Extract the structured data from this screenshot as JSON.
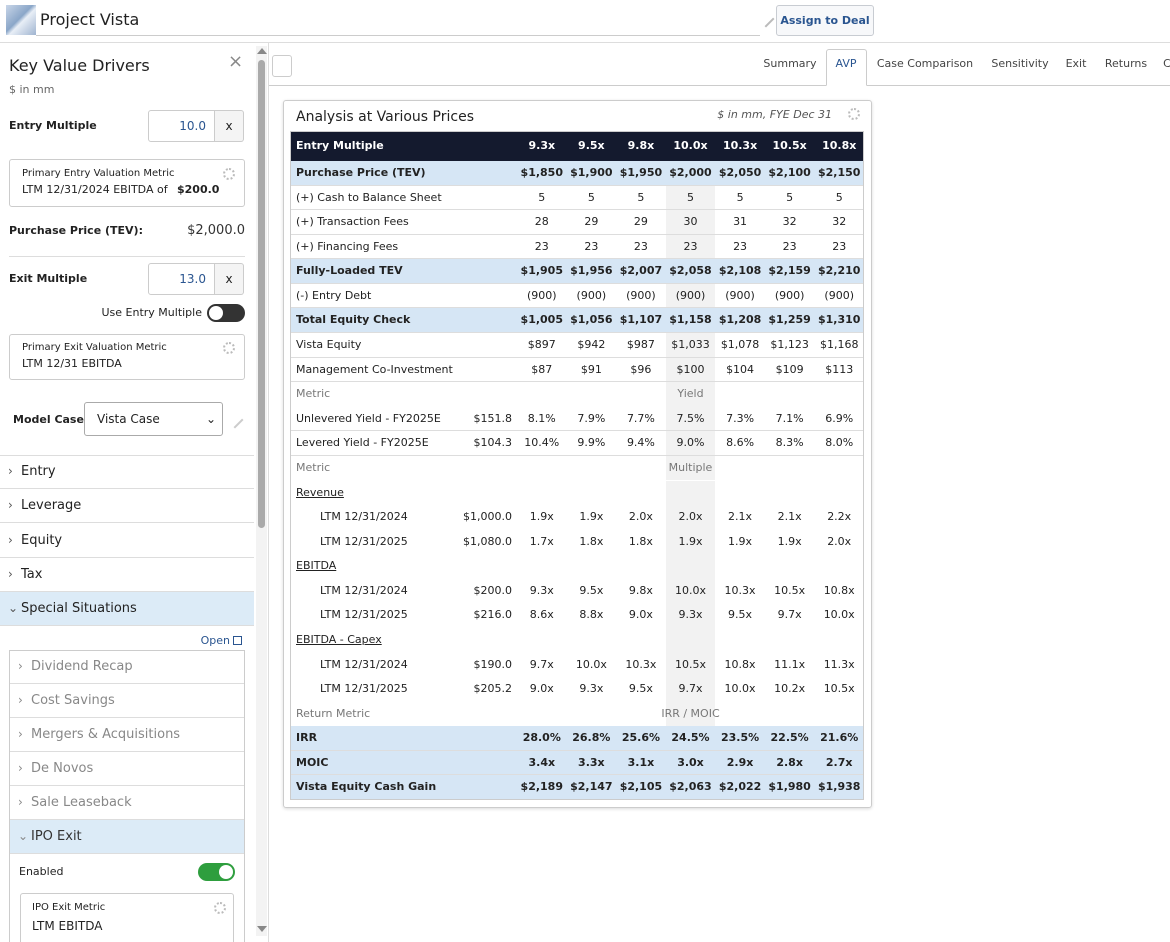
{
  "header": {
    "title": "Project Vista",
    "button": "Assign to Deal"
  },
  "sidebar": {
    "title": "Key Value Drivers",
    "unit": "$ in mm",
    "entry_multiple": {
      "label": "Entry Multiple",
      "value": "10.0",
      "suffix": "x"
    },
    "entry_metric": {
      "label": "Primary Entry Valuation Metric",
      "text": "LTM 12/31/2024 EBITDA of",
      "value": "$200.0"
    },
    "purchase_price": {
      "label": "Purchase Price (TEV):",
      "value": "$2,000.0"
    },
    "exit_multiple": {
      "label": "Exit Multiple",
      "value": "13.0",
      "suffix": "x"
    },
    "use_entry": "Use Entry Multiple",
    "exit_metric": {
      "label": "Primary Exit Valuation Metric",
      "text": "LTM 12/31 EBITDA"
    },
    "model_case": {
      "label": "Model Case",
      "value": "Vista Case"
    },
    "sections": [
      "Entry",
      "Leverage",
      "Equity",
      "Tax",
      "Special Situations"
    ],
    "open": "Open",
    "sub_sections": [
      "Dividend Recap",
      "Cost Savings",
      "Mergers & Acquisitions",
      "De Novos",
      "Sale Leaseback",
      "IPO Exit"
    ],
    "enabled": "Enabled",
    "ipo_metric": {
      "label": "IPO Exit Metric",
      "text": "LTM EBITDA"
    }
  },
  "tabs": [
    "Summary",
    "AVP",
    "Case Comparison",
    "Sensitivity",
    "Exit",
    "Returns",
    "C"
  ],
  "panel": {
    "title": "Analysis at Various Prices",
    "note": "$ in mm, FYE Dec 31"
  },
  "table": {
    "header": {
      "label": "Entry Multiple",
      "columns": [
        "9.3x",
        "9.5x",
        "9.8x",
        "10.0x",
        "10.3x",
        "10.5x",
        "10.8x"
      ]
    },
    "rows": [
      {
        "label": "Purchase Price (TEV)",
        "values": [
          "$1,850",
          "$1,900",
          "$1,950",
          "$2,000",
          "$2,050",
          "$2,100",
          "$2,150"
        ]
      },
      {
        "label": "(+) Cash to Balance Sheet",
        "values": [
          "5",
          "5",
          "5",
          "5",
          "5",
          "5",
          "5"
        ]
      },
      {
        "label": "(+) Transaction Fees",
        "values": [
          "28",
          "29",
          "29",
          "30",
          "31",
          "32",
          "32"
        ]
      },
      {
        "label": "(+) Financing Fees",
        "values": [
          "23",
          "23",
          "23",
          "23",
          "23",
          "23",
          "23"
        ]
      },
      {
        "label": "Fully-Loaded TEV",
        "values": [
          "$1,905",
          "$1,956",
          "$2,007",
          "$2,058",
          "$2,108",
          "$2,159",
          "$2,210"
        ]
      },
      {
        "label": "(-) Entry Debt",
        "values": [
          "(900)",
          "(900)",
          "(900)",
          "(900)",
          "(900)",
          "(900)",
          "(900)"
        ]
      },
      {
        "label": "Total Equity Check",
        "values": [
          "$1,005",
          "$1,056",
          "$1,107",
          "$1,158",
          "$1,208",
          "$1,259",
          "$1,310"
        ]
      },
      {
        "label": "Vista Equity",
        "values": [
          "$897",
          "$942",
          "$987",
          "$1,033",
          "$1,078",
          "$1,123",
          "$1,168"
        ]
      },
      {
        "label": "Management Co-Investment",
        "values": [
          "$87",
          "$91",
          "$96",
          "$100",
          "$104",
          "$109",
          "$113"
        ]
      },
      {
        "label": "Metric",
        "center": "Yield"
      },
      {
        "label": "Unlevered Yield - FY2025E",
        "base": "$151.8",
        "values": [
          "8.1%",
          "7.9%",
          "7.7%",
          "7.5%",
          "7.3%",
          "7.1%",
          "6.9%"
        ]
      },
      {
        "label": "Levered Yield - FY2025E",
        "base": "$104.3",
        "values": [
          "10.4%",
          "9.9%",
          "9.4%",
          "9.0%",
          "8.6%",
          "8.3%",
          "8.0%"
        ]
      },
      {
        "label": "Metric",
        "center": "Multiple"
      },
      {
        "label": "Revenue"
      },
      {
        "label": "LTM 12/31/2024",
        "base": "$1,000.0",
        "values": [
          "1.9x",
          "1.9x",
          "2.0x",
          "2.0x",
          "2.1x",
          "2.1x",
          "2.2x"
        ]
      },
      {
        "label": "LTM 12/31/2025",
        "base": "$1,080.0",
        "values": [
          "1.7x",
          "1.8x",
          "1.8x",
          "1.9x",
          "1.9x",
          "1.9x",
          "2.0x"
        ]
      },
      {
        "label": "EBITDA"
      },
      {
        "label": "LTM 12/31/2024",
        "base": "$200.0",
        "values": [
          "9.3x",
          "9.5x",
          "9.8x",
          "10.0x",
          "10.3x",
          "10.5x",
          "10.8x"
        ]
      },
      {
        "label": "LTM 12/31/2025",
        "base": "$216.0",
        "values": [
          "8.6x",
          "8.8x",
          "9.0x",
          "9.3x",
          "9.5x",
          "9.7x",
          "10.0x"
        ]
      },
      {
        "label": "EBITDA - Capex"
      },
      {
        "label": "LTM 12/31/2024",
        "base": "$190.0",
        "values": [
          "9.7x",
          "10.0x",
          "10.3x",
          "10.5x",
          "10.8x",
          "11.1x",
          "11.3x"
        ]
      },
      {
        "label": "LTM 12/31/2025",
        "base": "$205.2",
        "values": [
          "9.0x",
          "9.3x",
          "9.5x",
          "9.7x",
          "10.0x",
          "10.2x",
          "10.5x"
        ]
      },
      {
        "label": "Return Metric",
        "center": "IRR / MOIC"
      },
      {
        "label": "IRR",
        "values": [
          "28.0%",
          "26.8%",
          "25.6%",
          "24.5%",
          "23.5%",
          "22.5%",
          "21.6%"
        ]
      },
      {
        "label": "MOIC",
        "values": [
          "3.4x",
          "3.3x",
          "3.1x",
          "3.0x",
          "2.9x",
          "2.8x",
          "2.7x"
        ]
      },
      {
        "label": "Vista Equity Cash Gain",
        "values": [
          "$2,189",
          "$2,147",
          "$2,105",
          "$2,063",
          "$2,022",
          "$1,980",
          "$1,938"
        ]
      }
    ]
  }
}
